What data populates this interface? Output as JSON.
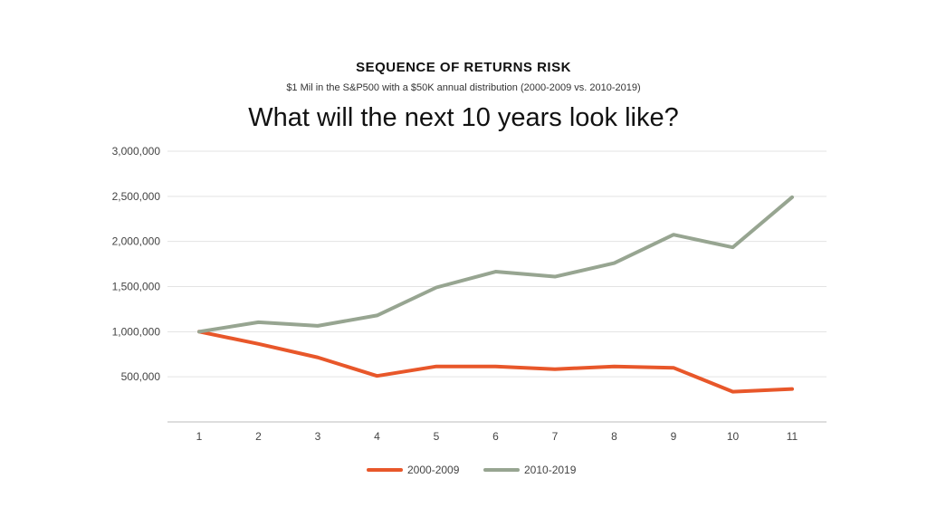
{
  "header": {
    "kicker": "SEQUENCE OF RETURNS RISK",
    "subtitle": "$1 Mil in the S&P500 with a $50K annual distribution (2000-2009 vs. 2010-2019)",
    "headline": "What will the next 10 years look like?"
  },
  "colors": {
    "series_2000_2009": "#e8572a",
    "series_2010_2019": "#97a591",
    "grid": "#e3e3e3",
    "axis": "#bdbdbd"
  },
  "chart_data": {
    "type": "line",
    "title": "What will the next 10 years look like?",
    "xlabel": "",
    "ylabel": "",
    "x": [
      "1",
      "2",
      "3",
      "4",
      "5",
      "6",
      "7",
      "8",
      "9",
      "10",
      "11"
    ],
    "y_ticks": [
      "500,000",
      "1,000,000",
      "1,500,000",
      "2,000,000",
      "2,500,000",
      "3,000,000"
    ],
    "y_tick_values": [
      500000,
      1000000,
      1500000,
      2000000,
      2500000,
      3000000
    ],
    "ylim": [
      0,
      3000000
    ],
    "grid": true,
    "legend_position": "bottom",
    "series": [
      {
        "name": "2000-2009",
        "color": "#e8572a",
        "values": [
          1000000,
          865000,
          715000,
          510000,
          615000,
          615000,
          585000,
          615000,
          600000,
          335000,
          365000
        ]
      },
      {
        "name": "2010-2019",
        "color": "#97a591",
        "values": [
          1000000,
          1105000,
          1065000,
          1180000,
          1490000,
          1665000,
          1610000,
          1760000,
          2075000,
          1935000,
          2490000
        ]
      }
    ]
  }
}
